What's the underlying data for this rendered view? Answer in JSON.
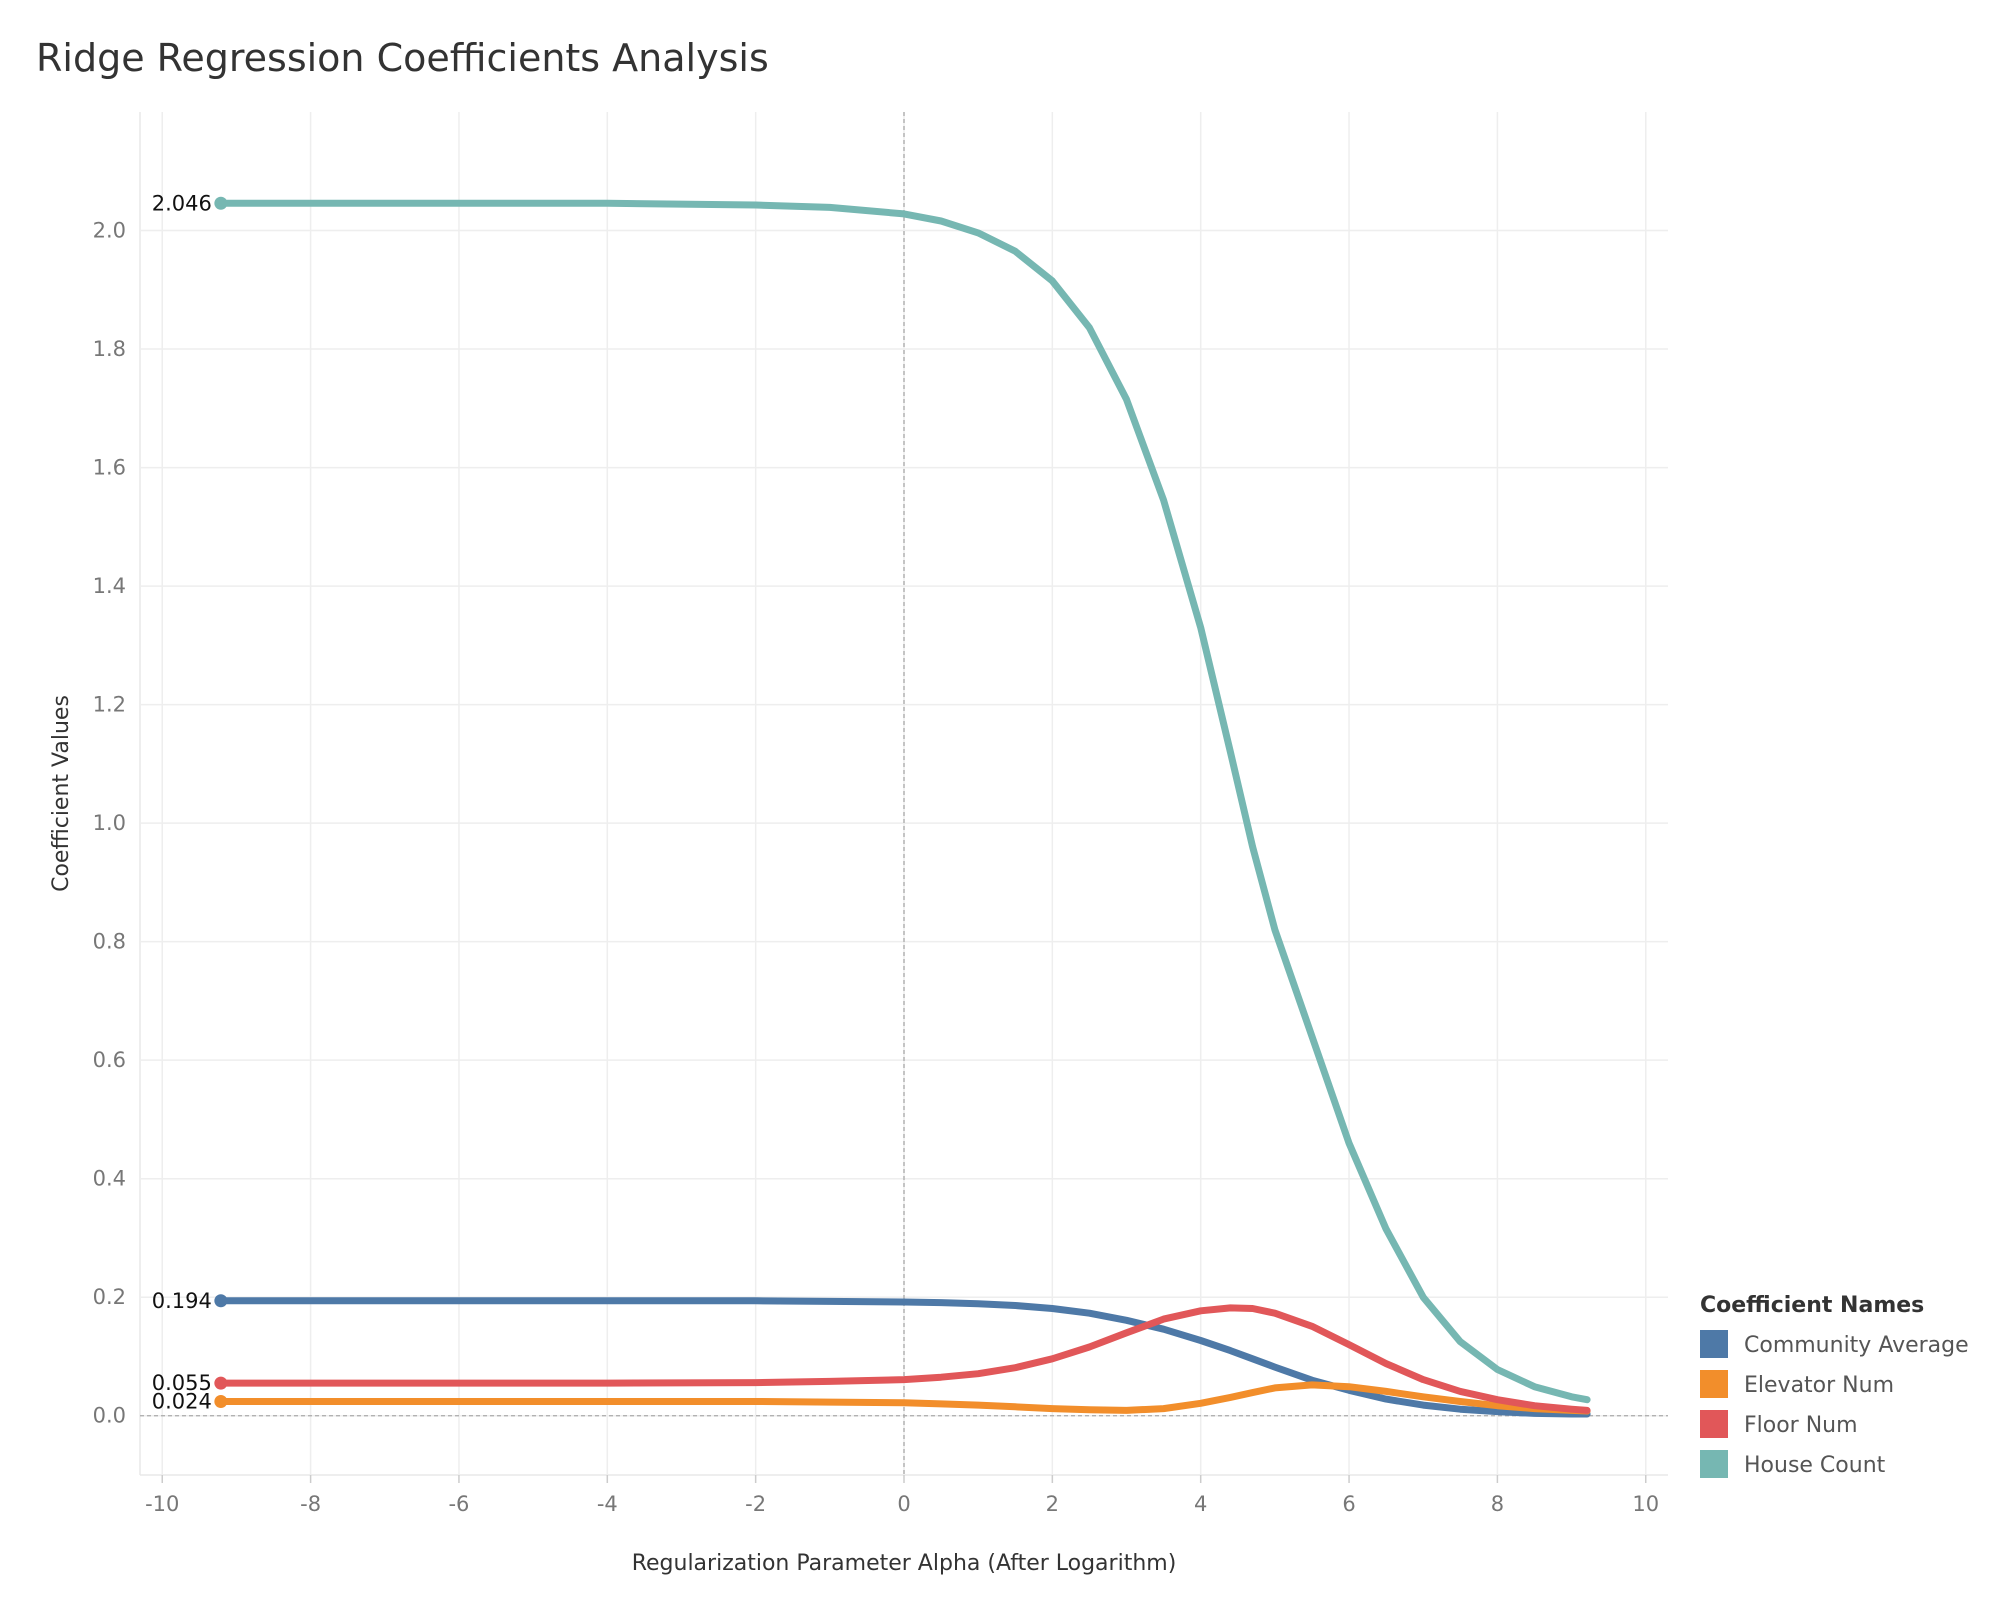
{
  "chart_data": {
    "type": "line",
    "title": "Ridge Regression Coefficients Analysis",
    "xlabel": "Regularization Parameter Alpha (After Logarithm)",
    "ylabel": "Coefficient Values",
    "xlim": [
      -10.3,
      10.3
    ],
    "ylim": [
      -0.1,
      2.2
    ],
    "xticks": [
      -10,
      -8,
      -6,
      -4,
      -2,
      0,
      2,
      4,
      6,
      8,
      10
    ],
    "yticks": [
      0.0,
      0.2,
      0.4,
      0.6,
      0.8,
      1.0,
      1.2,
      1.4,
      1.6,
      1.8,
      2.0
    ],
    "grid": true,
    "reference_lines": {
      "x": 0,
      "y": 0
    },
    "legend": {
      "title": "Coefficient Names",
      "position": "right"
    },
    "x": [
      -9.21,
      -8,
      -6,
      -4,
      -2,
      -1,
      0,
      0.5,
      1,
      1.5,
      2,
      2.5,
      3,
      3.5,
      4,
      4.4,
      4.7,
      5,
      5.5,
      6,
      6.5,
      7,
      7.5,
      8,
      8.5,
      9,
      9.21
    ],
    "series": [
      {
        "name": "Community Average",
        "color": "#4e79a7",
        "start_label": "0.194",
        "values": [
          0.194,
          0.194,
          0.194,
          0.194,
          0.194,
          0.193,
          0.192,
          0.191,
          0.189,
          0.186,
          0.181,
          0.173,
          0.161,
          0.146,
          0.127,
          0.11,
          0.096,
          0.082,
          0.06,
          0.043,
          0.028,
          0.018,
          0.011,
          0.007,
          0.004,
          0.003,
          0.003
        ]
      },
      {
        "name": "Elevator Num",
        "color": "#f28e2b",
        "start_label": "0.024",
        "values": [
          0.024,
          0.024,
          0.024,
          0.024,
          0.024,
          0.023,
          0.022,
          0.02,
          0.018,
          0.015,
          0.012,
          0.01,
          0.009,
          0.012,
          0.021,
          0.031,
          0.039,
          0.047,
          0.052,
          0.049,
          0.041,
          0.032,
          0.024,
          0.017,
          0.012,
          0.009,
          0.008
        ]
      },
      {
        "name": "Floor Num",
        "color": "#e15759",
        "start_label": "0.055",
        "values": [
          0.055,
          0.055,
          0.055,
          0.055,
          0.056,
          0.058,
          0.061,
          0.065,
          0.071,
          0.081,
          0.096,
          0.116,
          0.14,
          0.163,
          0.177,
          0.182,
          0.181,
          0.173,
          0.151,
          0.12,
          0.088,
          0.061,
          0.041,
          0.027,
          0.017,
          0.011,
          0.009
        ]
      },
      {
        "name": "House Count",
        "color": "#76b7b2",
        "start_label": "2.046",
        "values": [
          2.046,
          2.046,
          2.046,
          2.046,
          2.043,
          2.039,
          2.028,
          2.016,
          1.996,
          1.965,
          1.915,
          1.836,
          1.715,
          1.545,
          1.33,
          1.12,
          0.96,
          0.82,
          0.64,
          0.46,
          0.315,
          0.2,
          0.125,
          0.078,
          0.049,
          0.032,
          0.027
        ]
      }
    ]
  }
}
